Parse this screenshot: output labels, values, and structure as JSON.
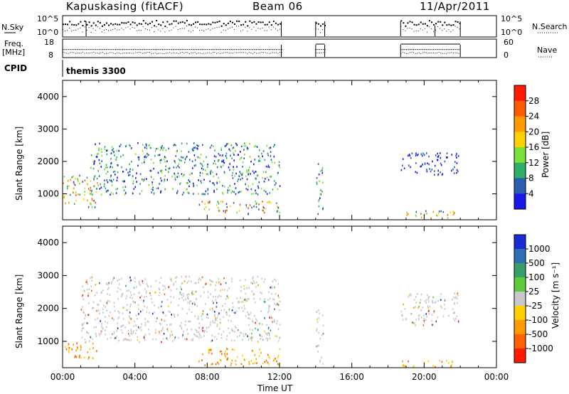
{
  "header": {
    "station": "Kapuskasing (fitACF)",
    "beam": "Beam 06",
    "date": "11/Apr/2011"
  },
  "info_panels": {
    "nsky_label": "N.Sky",
    "nsky_ticks": [
      "10^5",
      "10^0"
    ],
    "nsearch_label": "N.Search",
    "nsearch_ticks": [
      "10^5",
      "10^0"
    ],
    "freq_label_line1": "Freq.",
    "freq_label_line2": "[MHz]",
    "freq_ticks": [
      "18",
      "8"
    ],
    "nave_label": "Nave",
    "nave_ticks": [
      "60",
      "0"
    ],
    "cpid_label": "CPID",
    "cpid_value": "themis 3300"
  },
  "chart_data": [
    {
      "type": "heatmap",
      "name": "power-panel",
      "ylabel": "Slant Range [km]",
      "xlabel": "",
      "yticks": [
        "1000",
        "2000",
        "3000",
        "4000"
      ],
      "ylim": [
        200,
        4500
      ],
      "xlim": [
        0,
        24
      ],
      "colorbar_label": "Power [dB]",
      "colorbar_ticks": [
        "28",
        "24",
        "20",
        "16",
        "12",
        "8",
        "4"
      ],
      "colorbar_colors": [
        "#ff1a00",
        "#ff5a00",
        "#ff9a00",
        "#ffd100",
        "#7be03a",
        "#2fae6a",
        "#2a5fb0",
        "#1818e8"
      ],
      "regions": [
        {
          "t": [
            0.0,
            1.9
          ],
          "r": [
            600,
            1600
          ],
          "level": "high"
        },
        {
          "t": [
            1.5,
            12.0
          ],
          "r": [
            1000,
            2600
          ],
          "level": "medium"
        },
        {
          "t": [
            7.5,
            12.0
          ],
          "r": [
            400,
            800
          ],
          "level": "high"
        },
        {
          "t": [
            14.0,
            14.4
          ],
          "r": [
            250,
            2000
          ],
          "level": "medium"
        },
        {
          "t": [
            18.7,
            21.7
          ],
          "r": [
            250,
            500
          ],
          "level": "high"
        },
        {
          "t": [
            18.7,
            21.9
          ],
          "r": [
            1600,
            2300
          ],
          "level": "low"
        }
      ]
    },
    {
      "type": "heatmap",
      "name": "velocity-panel",
      "ylabel": "Slant Range [km]",
      "xlabel": "Time UT",
      "xticks": [
        "00:00",
        "04:00",
        "08:00",
        "12:00",
        "16:00",
        "20:00",
        "00:00"
      ],
      "yticks": [
        "1000",
        "2000",
        "3000",
        "4000"
      ],
      "ylim": [
        200,
        4500
      ],
      "xlim": [
        0,
        24
      ],
      "colorbar_label": "Velocity [m s⁻¹]",
      "colorbar_ticks": [
        "1000",
        "500",
        "100",
        "25",
        "-25",
        "-100",
        "-500",
        "-1000"
      ],
      "colorbar_colors": [
        "#1a2bd0",
        "#2f6fb8",
        "#35a06a",
        "#5ccc3a",
        "#c8c8c8",
        "#ffd000",
        "#ff9a00",
        "#ff6000",
        "#ff1a00"
      ],
      "regions": [
        {
          "t": [
            0.0,
            1.9
          ],
          "r": [
            500,
            1000
          ],
          "level": "negative"
        },
        {
          "t": [
            1.0,
            12.0
          ],
          "r": [
            1000,
            3000
          ],
          "level": "ground"
        },
        {
          "t": [
            7.5,
            12.0
          ],
          "r": [
            300,
            800
          ],
          "level": "negative"
        },
        {
          "t": [
            14.0,
            14.4
          ],
          "r": [
            250,
            2000
          ],
          "level": "ground"
        },
        {
          "t": [
            18.7,
            21.9
          ],
          "r": [
            1500,
            2500
          ],
          "level": "ground"
        },
        {
          "t": [
            18.7,
            21.7
          ],
          "r": [
            250,
            450
          ],
          "level": "negative"
        }
      ]
    }
  ]
}
